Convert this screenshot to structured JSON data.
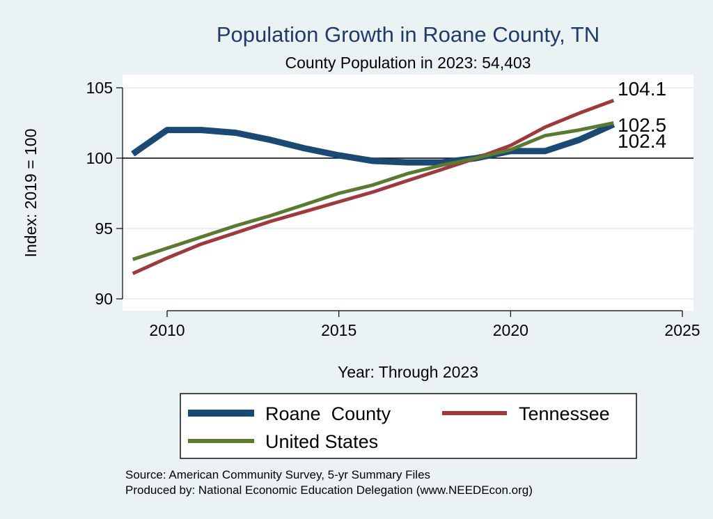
{
  "chart_data": {
    "type": "line",
    "title": "Population Growth in Roane County, TN",
    "subtitle": "County Population in 2023: 54,403",
    "xlabel": "Year: Through 2023",
    "ylabel": "Index: 2019 = 100",
    "xlim": [
      2009,
      2025
    ],
    "ylim": [
      90,
      105
    ],
    "x_ticks": [
      2010,
      2015,
      2020,
      2025
    ],
    "y_ticks": [
      90,
      95,
      100,
      105
    ],
    "reference_line": 100,
    "grid": true,
    "x": [
      2009,
      2010,
      2011,
      2012,
      2013,
      2014,
      2015,
      2016,
      2017,
      2018,
      2019,
      2020,
      2021,
      2022,
      2023
    ],
    "series": [
      {
        "name": "Roane  County",
        "color": "#1a4a73",
        "values": [
          100.3,
          102.0,
          102.0,
          101.8,
          101.3,
          100.7,
          100.2,
          99.8,
          99.7,
          99.7,
          100.0,
          100.5,
          100.5,
          101.3,
          102.4
        ]
      },
      {
        "name": "Tennessee",
        "color": "#9e3a3e",
        "values": [
          91.8,
          92.9,
          93.9,
          94.7,
          95.5,
          96.2,
          96.9,
          97.6,
          98.4,
          99.2,
          100.0,
          100.9,
          102.2,
          103.2,
          104.1
        ]
      },
      {
        "name": "United States",
        "color": "#5a7a31",
        "values": [
          92.8,
          93.6,
          94.4,
          95.2,
          95.9,
          96.7,
          97.5,
          98.1,
          98.9,
          99.5,
          100.0,
          100.6,
          101.6,
          102.0,
          102.5
        ]
      }
    ],
    "end_labels": [
      "104.1",
      "102.5",
      "102.4"
    ],
    "legend": {
      "position": "bottom",
      "entries": [
        "Roane  County",
        "Tennessee",
        "United States"
      ]
    },
    "notes": [
      "Source: American Community Survey, 5-yr Summary Files",
      "Produced by: National Economic Education Delegation (www.NEEDEcon.org)"
    ]
  }
}
